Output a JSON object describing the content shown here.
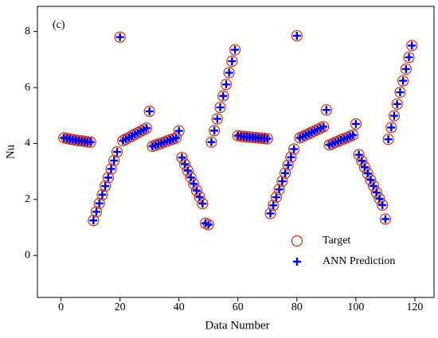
{
  "chart_data": {
    "type": "scatter",
    "annotation": "(c)",
    "xlabel": "Data Number",
    "ylabel": "Nu",
    "x": [
      1,
      2,
      3,
      4,
      5,
      6,
      7,
      8,
      9,
      10,
      11,
      12,
      13,
      14,
      15,
      16,
      17,
      18,
      19,
      20,
      21,
      22,
      23,
      24,
      25,
      26,
      27,
      28,
      29,
      30,
      31,
      32,
      33,
      34,
      35,
      36,
      37,
      38,
      39,
      40,
      41,
      42,
      43,
      44,
      45,
      46,
      47,
      48,
      49,
      50,
      51,
      52,
      53,
      54,
      55,
      56,
      57,
      58,
      59,
      60,
      61,
      62,
      63,
      64,
      65,
      66,
      67,
      68,
      69,
      70,
      71,
      72,
      73,
      74,
      75,
      76,
      77,
      78,
      79,
      80,
      81,
      82,
      83,
      84,
      85,
      86,
      87,
      88,
      89,
      90,
      91,
      92,
      93,
      94,
      95,
      96,
      97,
      98,
      99,
      100,
      101,
      102,
      103,
      104,
      105,
      106,
      107,
      108,
      109,
      110,
      111,
      112,
      113,
      114,
      115,
      116,
      117,
      118,
      119
    ],
    "series": [
      {
        "name": "Target",
        "color": "#c8301e",
        "marker": "circle",
        "values": [
          4.2,
          4.18,
          4.16,
          4.14,
          4.12,
          4.1,
          4.09,
          4.08,
          4.06,
          4.05,
          1.25,
          1.56,
          1.86,
          2.17,
          2.48,
          2.78,
          3.09,
          3.39,
          3.7,
          7.8,
          4.1,
          4.16,
          4.21,
          4.27,
          4.33,
          4.38,
          4.44,
          4.49,
          4.55,
          5.15,
          3.9,
          3.94,
          3.98,
          4.01,
          4.05,
          4.09,
          4.13,
          4.16,
          4.2,
          4.45,
          3.5,
          3.26,
          3.03,
          2.79,
          2.56,
          2.32,
          2.09,
          1.85,
          1.15,
          1.1,
          4.05,
          4.46,
          4.88,
          5.29,
          5.7,
          6.11,
          6.53,
          6.94,
          7.35,
          4.28,
          4.26,
          4.25,
          4.24,
          4.23,
          4.22,
          4.21,
          4.2,
          4.19,
          4.18,
          4.17,
          1.5,
          1.79,
          2.08,
          2.36,
          2.65,
          2.94,
          3.23,
          3.51,
          3.8,
          7.85,
          4.2,
          4.25,
          4.3,
          4.35,
          4.4,
          4.45,
          4.5,
          4.55,
          4.6,
          5.2,
          3.95,
          3.99,
          4.04,
          4.08,
          4.13,
          4.17,
          4.21,
          4.26,
          4.3,
          4.7,
          3.6,
          3.38,
          3.15,
          2.93,
          2.7,
          2.48,
          2.25,
          2.03,
          1.8,
          1.3,
          4.15,
          4.57,
          4.99,
          5.41,
          5.83,
          6.24,
          6.66,
          7.08,
          7.5
        ]
      },
      {
        "name": "ANN Prediction",
        "color": "#0000ee",
        "marker": "plus",
        "values": [
          4.2,
          4.18,
          4.16,
          4.14,
          4.12,
          4.1,
          4.09,
          4.08,
          4.06,
          4.05,
          1.25,
          1.56,
          1.86,
          2.17,
          2.48,
          2.78,
          3.09,
          3.39,
          3.7,
          7.8,
          4.1,
          4.16,
          4.21,
          4.27,
          4.33,
          4.38,
          4.44,
          4.49,
          4.55,
          5.15,
          3.9,
          3.94,
          3.98,
          4.01,
          4.05,
          4.09,
          4.13,
          4.16,
          4.2,
          4.45,
          3.5,
          3.26,
          3.03,
          2.79,
          2.56,
          2.32,
          2.09,
          1.85,
          1.15,
          1.1,
          4.05,
          4.46,
          4.88,
          5.29,
          5.7,
          6.11,
          6.53,
          6.94,
          7.35,
          4.28,
          4.26,
          4.25,
          4.24,
          4.23,
          4.22,
          4.21,
          4.2,
          4.19,
          4.18,
          4.17,
          1.5,
          1.79,
          2.08,
          2.36,
          2.65,
          2.94,
          3.23,
          3.51,
          3.8,
          7.85,
          4.2,
          4.25,
          4.3,
          4.35,
          4.4,
          4.45,
          4.5,
          4.55,
          4.6,
          5.2,
          3.95,
          3.99,
          4.04,
          4.08,
          4.13,
          4.17,
          4.21,
          4.26,
          4.3,
          4.7,
          3.6,
          3.38,
          3.15,
          2.93,
          2.7,
          2.48,
          2.25,
          2.03,
          1.8,
          1.3,
          4.15,
          4.57,
          4.99,
          5.41,
          5.83,
          6.24,
          6.66,
          7.08,
          7.5
        ]
      }
    ],
    "xlim": [
      -8,
      126.5
    ],
    "xticks": [
      0,
      20,
      40,
      60,
      80,
      100,
      120
    ],
    "ylim": [
      -1.5,
      8.9
    ],
    "yticks": [
      0,
      2,
      4,
      6,
      8
    ],
    "grid": false,
    "legend": "lower right"
  }
}
